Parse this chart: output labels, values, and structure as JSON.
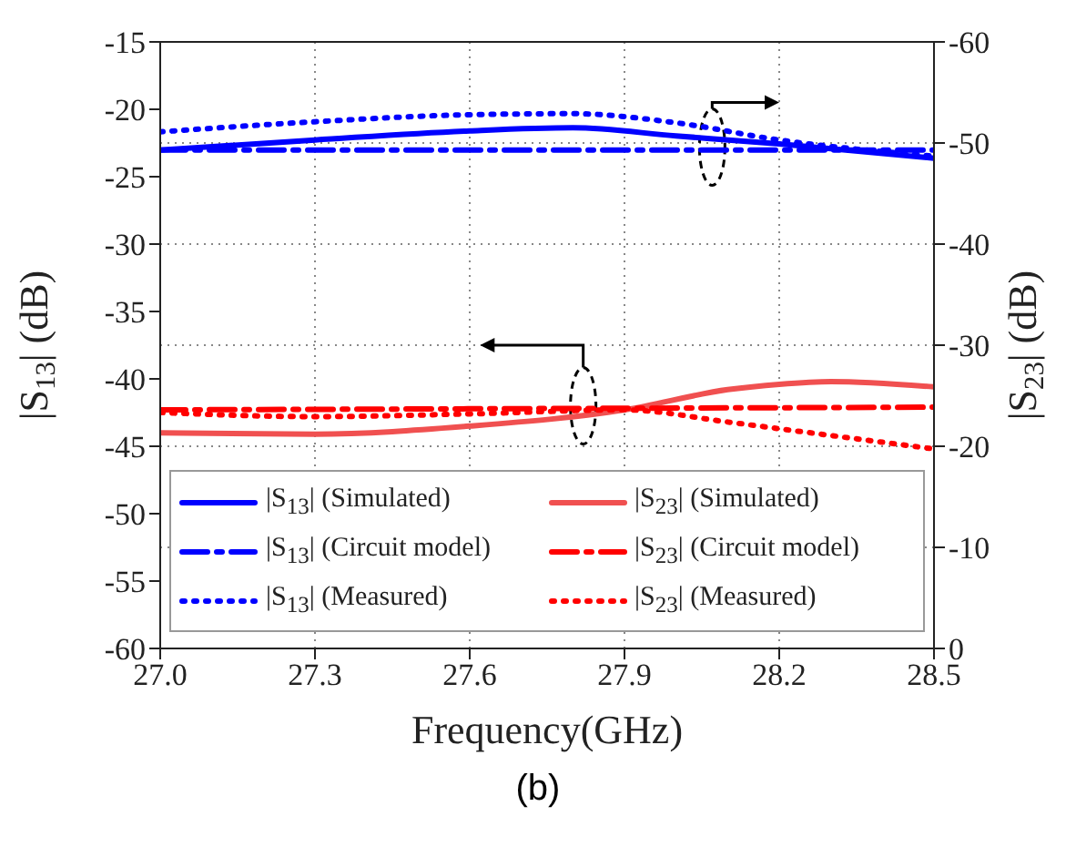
{
  "chart_data": {
    "type": "line",
    "xlabel": "Frequency(GHz)",
    "ylabel": "|S$_{13}$| (dB)",
    "y2label": "|S$_{23}$| (dB)",
    "xlim": [
      27.0,
      28.5
    ],
    "xticks": [
      {
        "value": 27.0,
        "label": "27.0"
      },
      {
        "value": 27.3,
        "label": "27.3"
      },
      {
        "value": 27.6,
        "label": "27.6"
      },
      {
        "value": 27.9,
        "label": "27.9"
      },
      {
        "value": 28.2,
        "label": "28.2"
      },
      {
        "value": 28.5,
        "label": "28.5"
      }
    ],
    "ylim": [
      -60,
      -15
    ],
    "yticks": [
      -60,
      -55,
      -50,
      -45,
      -40,
      -35,
      -30,
      -25,
      -20,
      -15
    ],
    "y2lim": [
      0,
      -60
    ],
    "y2ticks": [
      0,
      -10,
      -20,
      -30,
      -40,
      -50,
      -60
    ],
    "grid": true,
    "legend": "bottom",
    "annotations": [
      "(b)"
    ],
    "series": [
      {
        "name": "|S$_{13}$| (Simulated)",
        "color": "#0000ff",
        "line_style": "solid",
        "axis": "y2",
        "x": [
          27.0,
          27.3,
          27.6,
          27.8,
          28.0,
          28.2,
          28.5
        ],
        "values": [
          -49.3,
          -50.3,
          -51.2,
          -51.5,
          -50.7,
          -49.9,
          -48.5
        ]
      },
      {
        "name": "|S$_{13}$| (Circuit model)",
        "color": "#0000ff",
        "line_style": "dashdot",
        "axis": "y2",
        "x": [
          27.0,
          28.5
        ],
        "values": [
          -49.3,
          -49.3
        ]
      },
      {
        "name": "|S$_{13}$| (Measured)",
        "color": "#0000ff",
        "line_style": "dotted",
        "axis": "y2",
        "x": [
          27.0,
          27.3,
          27.6,
          27.8,
          28.0,
          28.2,
          28.5
        ],
        "values": [
          -51.1,
          -52.1,
          -52.8,
          -52.9,
          -52.0,
          -50.3,
          -48.7
        ]
      },
      {
        "name": "|S$_{23}$|  (Simulated)",
        "color": "#f05050",
        "line_style": "solid",
        "axis": "y",
        "x": [
          27.0,
          27.3,
          27.6,
          27.9,
          28.1,
          28.2,
          28.3,
          28.5
        ],
        "values": [
          -44.0,
          -44.1,
          -43.5,
          -42.3,
          -40.8,
          -40.4,
          -40.2,
          -40.6
        ]
      },
      {
        "name": "|S$_{23}$| (Circuit model)",
        "color": "#ff0000",
        "line_style": "dashdot",
        "axis": "y",
        "x": [
          27.0,
          27.75,
          28.5
        ],
        "values": [
          -42.3,
          -42.2,
          -42.1
        ]
      },
      {
        "name": "|S$_{23}$| (Measured)",
        "color": "#ff0000",
        "line_style": "dotted",
        "axis": "y",
        "x": [
          27.0,
          27.3,
          27.6,
          27.9,
          28.1,
          28.2,
          28.5
        ],
        "values": [
          -42.5,
          -42.8,
          -42.6,
          -42.3,
          -43.2,
          -43.7,
          -45.2
        ]
      }
    ]
  }
}
